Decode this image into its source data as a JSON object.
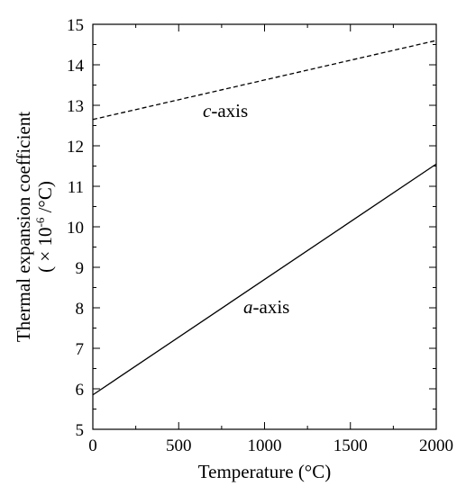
{
  "chart_data": {
    "type": "line",
    "title": "",
    "xlabel": "Temperature (°C)",
    "ylabel": "Thermal expansion coefficient",
    "ylabel_line2_prefix": "( × 10",
    "ylabel_line2_exp": "-6",
    "ylabel_line2_suffix": " /°C)",
    "xlim": [
      0,
      2000
    ],
    "ylim": [
      5,
      15
    ],
    "x_ticks": [
      0,
      500,
      1000,
      1500,
      2000
    ],
    "y_ticks": [
      5,
      6,
      7,
      8,
      9,
      10,
      11,
      12,
      13,
      14,
      15
    ],
    "grid": false,
    "legend": "none",
    "series": [
      {
        "label_italic": "c",
        "label_rest": "-axis",
        "style": "dashed",
        "x": [
          0,
          2000
        ],
        "y": [
          12.65,
          14.6
        ]
      },
      {
        "label_italic": "a",
        "label_rest": "-axis",
        "style": "solid",
        "x": [
          0,
          2000
        ],
        "y": [
          5.85,
          11.55
        ]
      }
    ]
  }
}
